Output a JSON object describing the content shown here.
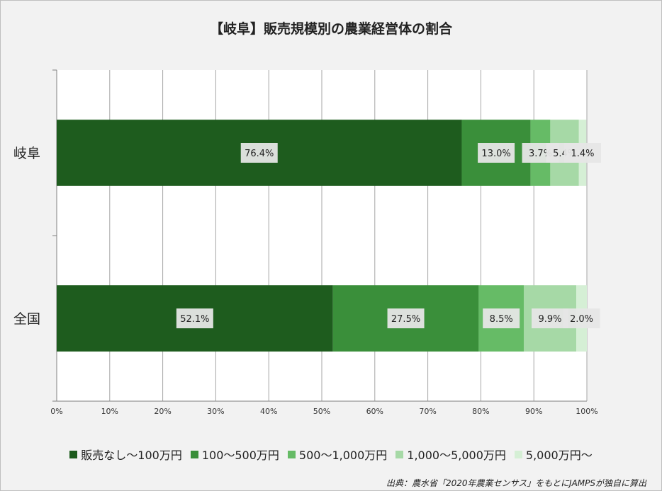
{
  "chart_data": {
    "type": "bar",
    "orientation": "horizontal",
    "stacked": true,
    "title": "【岐阜】販売規模別の農業経営体の割合",
    "categories": [
      "岐阜",
      "全国"
    ],
    "series": [
      {
        "name": "販売なし～100万円",
        "values": [
          76.4,
          52.1
        ],
        "labels": [
          "76.4%",
          "52.1%"
        ],
        "color": "#1e5c1e"
      },
      {
        "name": "100～500万円",
        "values": [
          13.0,
          27.5
        ],
        "labels": [
          "13.0%",
          "27.5%"
        ],
        "color": "#3a8f3a"
      },
      {
        "name": "500～1,000万円",
        "values": [
          3.7,
          8.5
        ],
        "labels": [
          "3.7%",
          "8.5%"
        ],
        "color": "#66bb66"
      },
      {
        "name": "1,000～5,000万円",
        "values": [
          5.4,
          9.9
        ],
        "labels": [
          "5.4%",
          "9.9%"
        ],
        "color": "#a6d9a6"
      },
      {
        "name": "5,000万円～",
        "values": [
          1.4,
          2.0
        ],
        "labels": [
          "1.4%",
          "2.0%"
        ],
        "color": "#d5efd5"
      }
    ],
    "xlim": [
      0,
      100
    ],
    "xticks": [
      "0%",
      "10%",
      "20%",
      "30%",
      "40%",
      "50%",
      "60%",
      "70%",
      "80%",
      "90%",
      "100%"
    ],
    "grid": true,
    "legend": "bottom"
  },
  "source": "出典：農水省「2020年農業センサス」をもとにJAMPSが独自に算出"
}
